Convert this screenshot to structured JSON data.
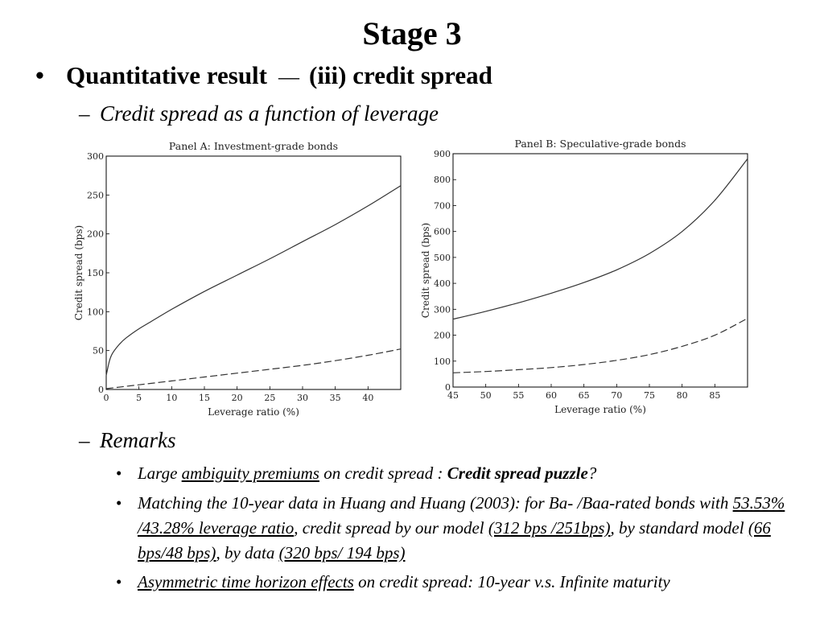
{
  "title": "Stage 3",
  "bullet": {
    "marker": "•",
    "main": "Quantitative result",
    "dash": "—",
    "rest": "(iii) credit spread"
  },
  "sub1": {
    "dash": "–",
    "text": "Credit spread as a function of leverage"
  },
  "sub2": {
    "dash": "–",
    "text": "Remarks"
  },
  "remarks": {
    "r1": {
      "marker": "•",
      "p1": "Large ",
      "u1": "ambiguity premiums",
      "p2": " on credit spread : ",
      "b1": "Credit spread puzzle",
      "p3": "?"
    },
    "r2": {
      "marker": "•",
      "p1": "Matching the 10-year data in Huang and Huang (2003): for Ba- /Baa-rated bonds with ",
      "u1": "53.53% /43.28% leverage ratio",
      "p2": ", credit spread by our model ",
      "u2": "(312 bps /251bps)",
      "p3": ", by standard model ",
      "u3": "(66 bps/48 bps)",
      "p4": ", by data ",
      "u4": "(320 bps/ 194 bps)"
    },
    "r3": {
      "marker": "•",
      "u1": "Asymmetric time horizon effects",
      "p1": " on credit spread: 10-year v.s. Infinite maturity"
    }
  },
  "chart_data": [
    {
      "type": "line",
      "title": "Panel A: Investment-grade bonds",
      "xlabel": "Leverage ratio (%)",
      "ylabel": "Credit spread (bps)",
      "xlim": [
        0,
        45
      ],
      "ylim": [
        0,
        300
      ],
      "xticks": [
        0,
        5,
        10,
        15,
        20,
        25,
        30,
        35,
        40
      ],
      "yticks": [
        0,
        50,
        100,
        150,
        200,
        250,
        300
      ],
      "grid": false,
      "series": [
        {
          "style": "solid",
          "x": [
            0,
            0.5,
            1,
            2,
            3,
            5,
            7,
            10,
            15,
            20,
            25,
            30,
            35,
            40,
            45
          ],
          "y": [
            18,
            37,
            47,
            58,
            66,
            78,
            88,
            103,
            126,
            147,
            168,
            190,
            212,
            236,
            262
          ]
        },
        {
          "style": "dashed",
          "x": [
            0,
            5,
            10,
            15,
            20,
            25,
            30,
            35,
            40,
            45
          ],
          "y": [
            1,
            6,
            11,
            16,
            21,
            26,
            31,
            37,
            44,
            52
          ]
        }
      ]
    },
    {
      "type": "line",
      "title": "Panel B: Speculative-grade bonds",
      "xlabel": "Leverage ratio (%)",
      "ylabel": "Credit spread (bps)",
      "xlim": [
        45,
        90
      ],
      "ylim": [
        0,
        900
      ],
      "xticks": [
        45,
        50,
        55,
        60,
        65,
        70,
        75,
        80,
        85
      ],
      "yticks": [
        0,
        100,
        200,
        300,
        400,
        500,
        600,
        700,
        800,
        900
      ],
      "grid": false,
      "series": [
        {
          "style": "solid",
          "x": [
            45,
            50,
            55,
            60,
            65,
            70,
            75,
            80,
            85,
            90
          ],
          "y": [
            262,
            292,
            325,
            362,
            403,
            452,
            515,
            600,
            720,
            880
          ]
        },
        {
          "style": "dashed",
          "x": [
            45,
            50,
            55,
            60,
            65,
            70,
            75,
            80,
            85,
            90
          ],
          "y": [
            55,
            60,
            67,
            75,
            87,
            103,
            125,
            157,
            200,
            265
          ]
        }
      ]
    }
  ]
}
